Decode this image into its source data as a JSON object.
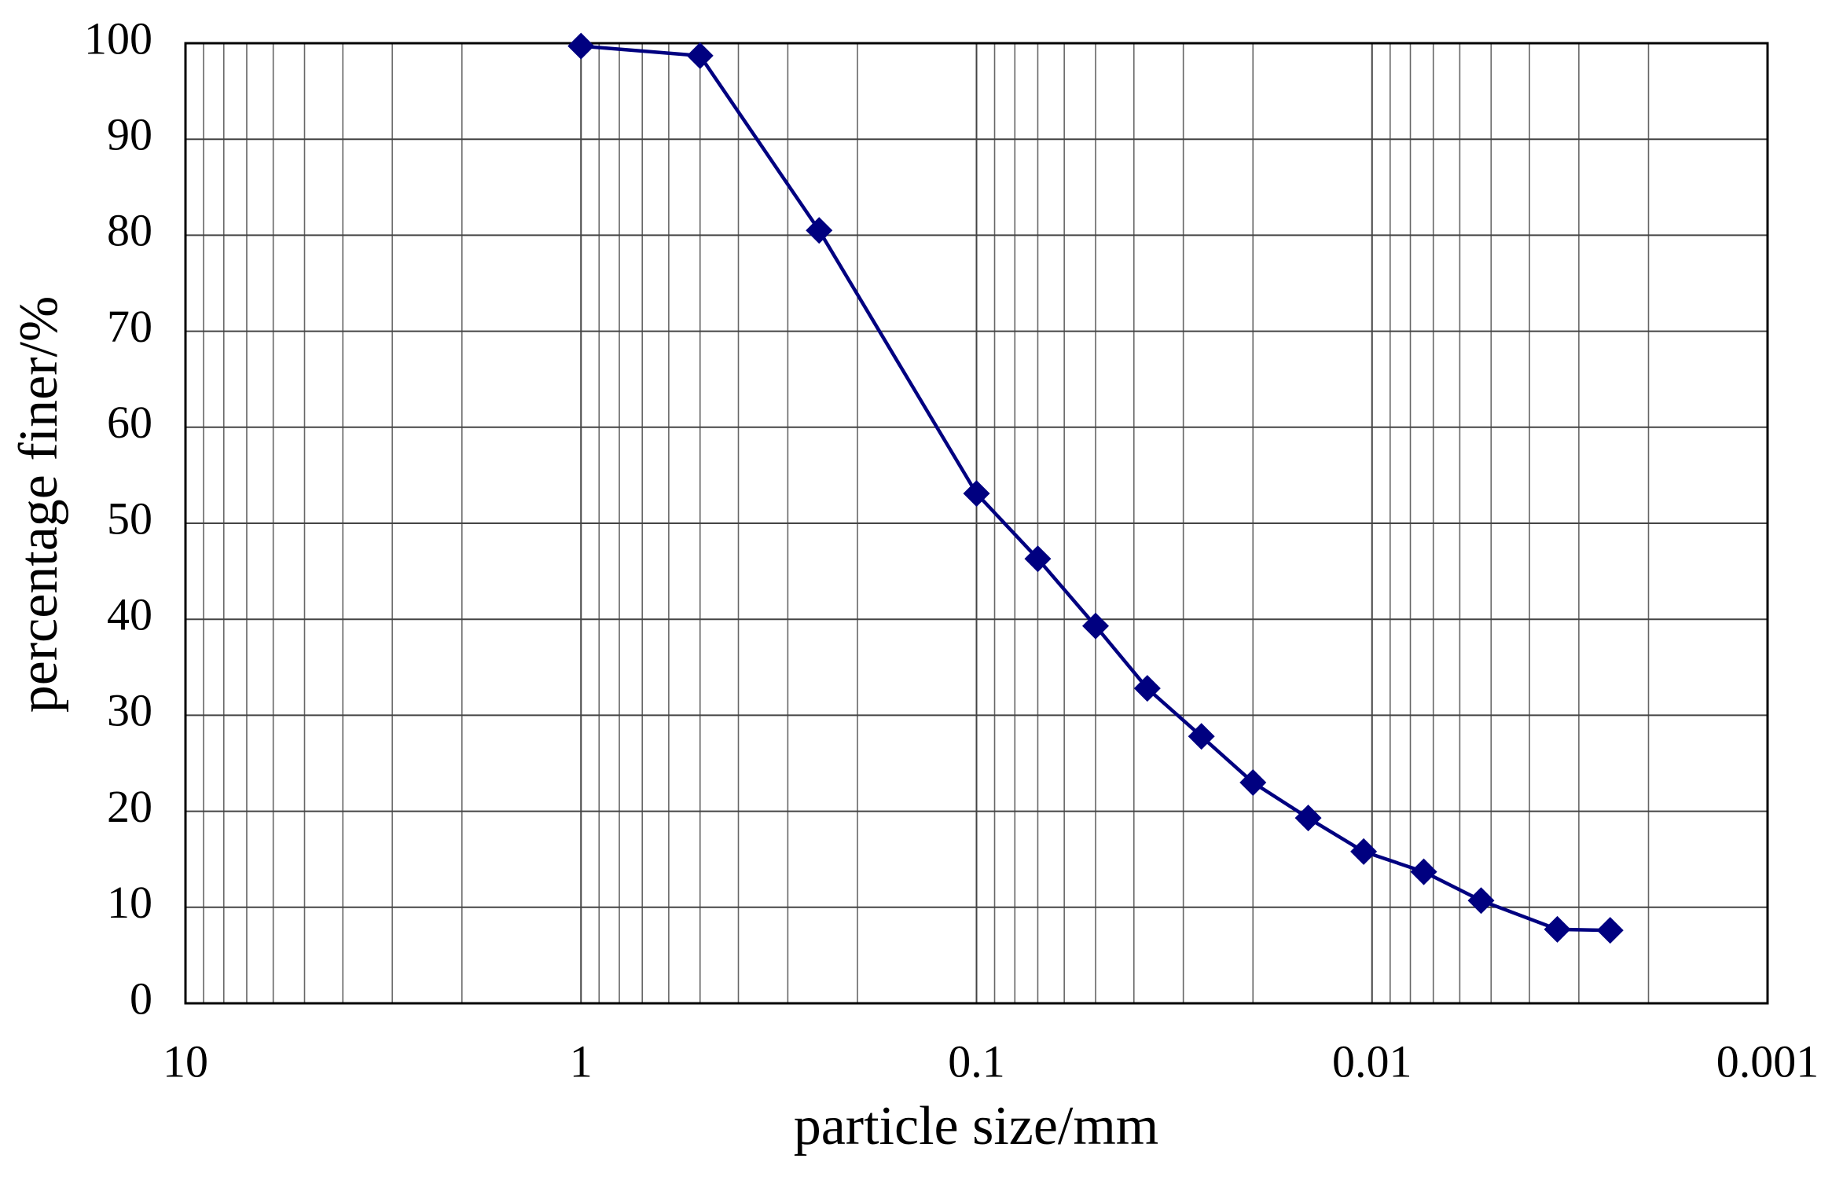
{
  "chart_data": {
    "type": "line",
    "xlabel": "particle size/mm",
    "ylabel": "percentage finer/%",
    "x": [
      1,
      0.5,
      0.25,
      0.1,
      0.07,
      0.05,
      0.037,
      0.027,
      0.02,
      0.0145,
      0.0105,
      0.0074,
      0.0053,
      0.0034,
      0.0025
    ],
    "values": [
      99.7,
      98.7,
      80.5,
      53.1,
      46.3,
      39.3,
      32.8,
      27.8,
      23.0,
      19.3,
      15.8,
      13.7,
      10.7,
      7.7,
      7.6
    ],
    "color": "#000080",
    "marker": "diamond",
    "xscale": "log",
    "xlim": [
      10,
      0.001
    ],
    "xticks": [
      10,
      1,
      0.1,
      0.01,
      0.001
    ],
    "ylim": [
      0,
      100
    ],
    "yticks": [
      0,
      10,
      20,
      30,
      40,
      50,
      60,
      70,
      80,
      90,
      100
    ],
    "grid": true
  }
}
